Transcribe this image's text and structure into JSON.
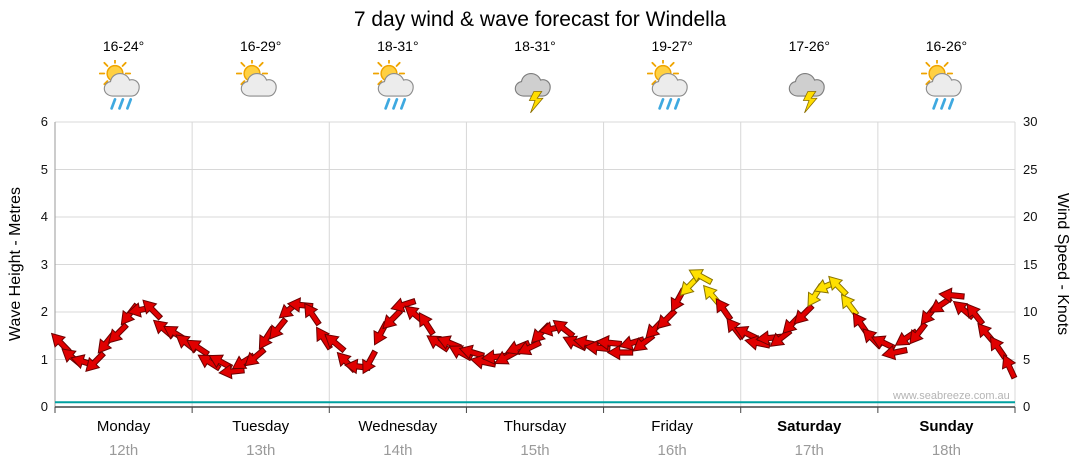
{
  "title": "7 day wind & wave forecast for Windella",
  "watermark": "www.seabreeze.com.au",
  "days": [
    {
      "name": "Monday",
      "date": "12th",
      "temp": "16-24°",
      "icon": "sun-cloud-rain-icon",
      "bold": false
    },
    {
      "name": "Tuesday",
      "date": "13th",
      "temp": "16-29°",
      "icon": "sun-cloud-icon",
      "bold": false
    },
    {
      "name": "Wednesday",
      "date": "14th",
      "temp": "18-31°",
      "icon": "sun-cloud-rain-icon",
      "bold": false
    },
    {
      "name": "Thursday",
      "date": "15th",
      "temp": "18-31°",
      "icon": "storm-lightning-icon",
      "bold": false
    },
    {
      "name": "Friday",
      "date": "16th",
      "temp": "19-27°",
      "icon": "sun-cloud-rain-icon",
      "bold": false
    },
    {
      "name": "Saturday",
      "date": "17th",
      "temp": "17-26°",
      "icon": "storm-lightning-icon",
      "bold": true
    },
    {
      "name": "Sunday",
      "date": "18th",
      "temp": "16-26°",
      "icon": "sun-cloud-rain-icon",
      "bold": true
    }
  ],
  "chart_data": {
    "type": "line",
    "title": "7 day wind & wave forecast for Windella",
    "x_categories": [
      "Monday 12th",
      "Tuesday 13th",
      "Wednesday 14th",
      "Thursday 15th",
      "Friday 16th",
      "Saturday 17th",
      "Sunday 18th"
    ],
    "points_per_day": 12,
    "grid": true,
    "legend": "none",
    "y_left": {
      "label": "Wave Height - Metres",
      "range": [
        0,
        6
      ],
      "ticks": [
        0,
        1,
        2,
        3,
        4,
        5,
        6
      ]
    },
    "y_right": {
      "label": "Wind Speed - Knots",
      "range": [
        0,
        30
      ],
      "ticks": [
        0,
        5,
        10,
        15,
        20,
        25,
        30
      ]
    },
    "series": [
      {
        "name": "Wind speed",
        "units": "knots",
        "axis": "right",
        "marker": "direction-arrow",
        "color": "#e00000",
        "strong_color": "#ffe000",
        "values": [
          6.5,
          5.5,
          4.5,
          5.0,
          6.5,
          8.0,
          9.5,
          10.5,
          10.0,
          8.5,
          7.5,
          7.0,
          6.0,
          5.0,
          4.5,
          4.0,
          4.5,
          5.5,
          7.0,
          8.5,
          10.0,
          11.0,
          9.5,
          7.5,
          6.5,
          5.0,
          4.0,
          5.0,
          7.5,
          9.5,
          10.5,
          10.0,
          8.5,
          7.0,
          6.5,
          6.0,
          5.5,
          5.0,
          5.0,
          5.5,
          6.0,
          6.5,
          7.5,
          8.5,
          8.0,
          7.0,
          6.5,
          6.5,
          6.5,
          6.0,
          6.5,
          7.0,
          8.0,
          9.5,
          11.0,
          13.0,
          13.5,
          12.0,
          10.0,
          8.5,
          7.5,
          7.0,
          7.0,
          7.5,
          8.5,
          10.0,
          11.5,
          13.0,
          12.5,
          11.0,
          8.5,
          7.5,
          6.5,
          6.0,
          7.0,
          8.0,
          9.5,
          11.0,
          11.5,
          10.5,
          9.5,
          8.0,
          6.0,
          4.5
        ],
        "strong_indices": [
          55,
          56,
          57,
          66,
          67,
          68,
          69
        ]
      },
      {
        "name": "Wave height",
        "units": "metres",
        "axis": "left",
        "marker": "line",
        "color": "#00a0a0",
        "values_constant": 0.1
      }
    ]
  }
}
